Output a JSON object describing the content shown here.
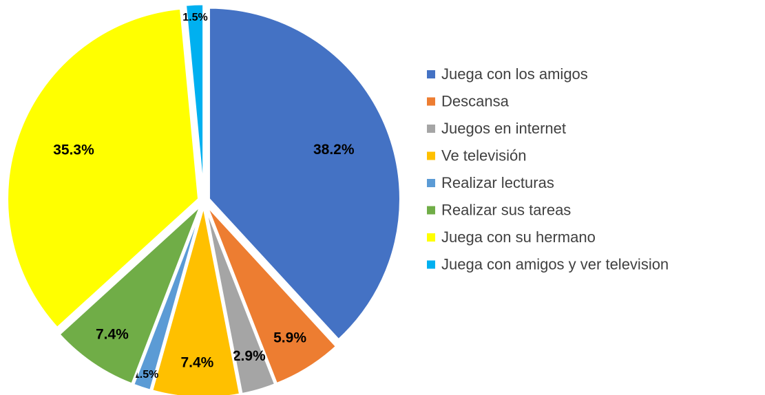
{
  "chart_data": {
    "type": "pie",
    "categories": [
      "Juega con los amigos",
      "Descansa",
      "Juegos en internet",
      "Ve televisión",
      "Realizar lecturas",
      "Realizar sus tareas",
      "Juega con su hermano",
      "Juega con amigos y ver television"
    ],
    "values": [
      38.2,
      5.9,
      2.9,
      7.4,
      1.5,
      7.4,
      35.3,
      1.5
    ],
    "value_labels": [
      "38.2%",
      "5.9%",
      "2.9%",
      "7.4%",
      "1.5%",
      "7.4%",
      "35.3%",
      "1.5%"
    ],
    "colors": [
      "#4472c4",
      "#ed7d31",
      "#a5a5a5",
      "#ffc000",
      "#5b9bd5",
      "#70ad47",
      "#ffff00",
      "#00b0f0"
    ],
    "legend": "right"
  }
}
